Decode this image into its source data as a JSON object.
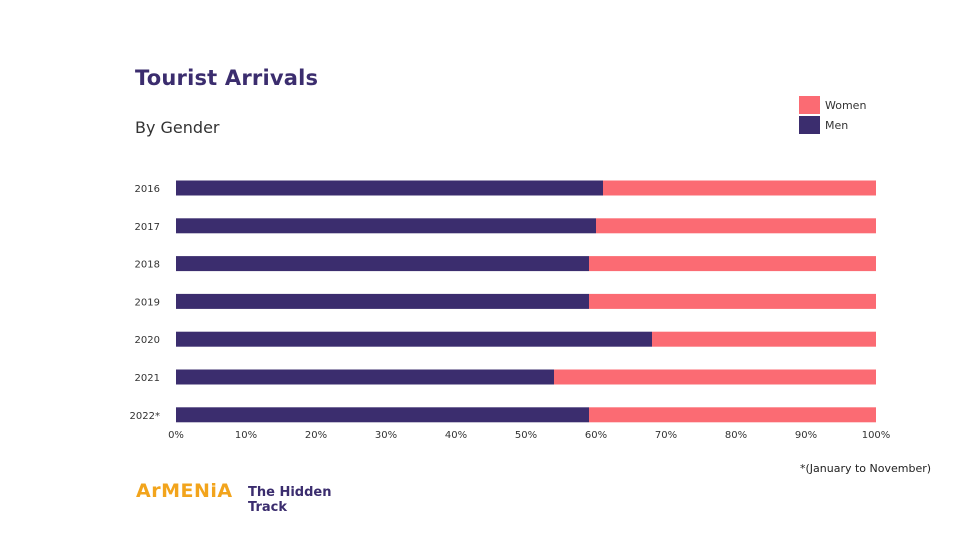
{
  "chart_data": {
    "type": "bar",
    "orientation": "horizontal",
    "stacked": true,
    "title": "Tourist Arrivals",
    "subtitle": "By Gender",
    "categories": [
      "2016",
      "2017",
      "2018",
      "2019",
      "2020",
      "2021",
      "2022*"
    ],
    "series": [
      {
        "name": "Men",
        "color": "#3b2d6e",
        "values": [
          61,
          60,
          59,
          59,
          68,
          54,
          59
        ]
      },
      {
        "name": "Women",
        "color": "#fb6b73",
        "values": [
          39,
          40,
          41,
          41,
          32,
          46,
          41
        ]
      }
    ],
    "xlim": [
      0,
      100
    ],
    "x_ticks": [
      "0%",
      "10%",
      "20%",
      "30%",
      "40%",
      "50%",
      "60%",
      "70%",
      "80%",
      "90%",
      "100%"
    ],
    "legend_order": [
      "Women",
      "Men"
    ],
    "legend_position": "top-right",
    "grid": false,
    "footnote": "*(January to November)"
  },
  "brand": {
    "logo_text": "ArMENiA",
    "tagline_line1": "The Hidden",
    "tagline_line2": "Track"
  }
}
